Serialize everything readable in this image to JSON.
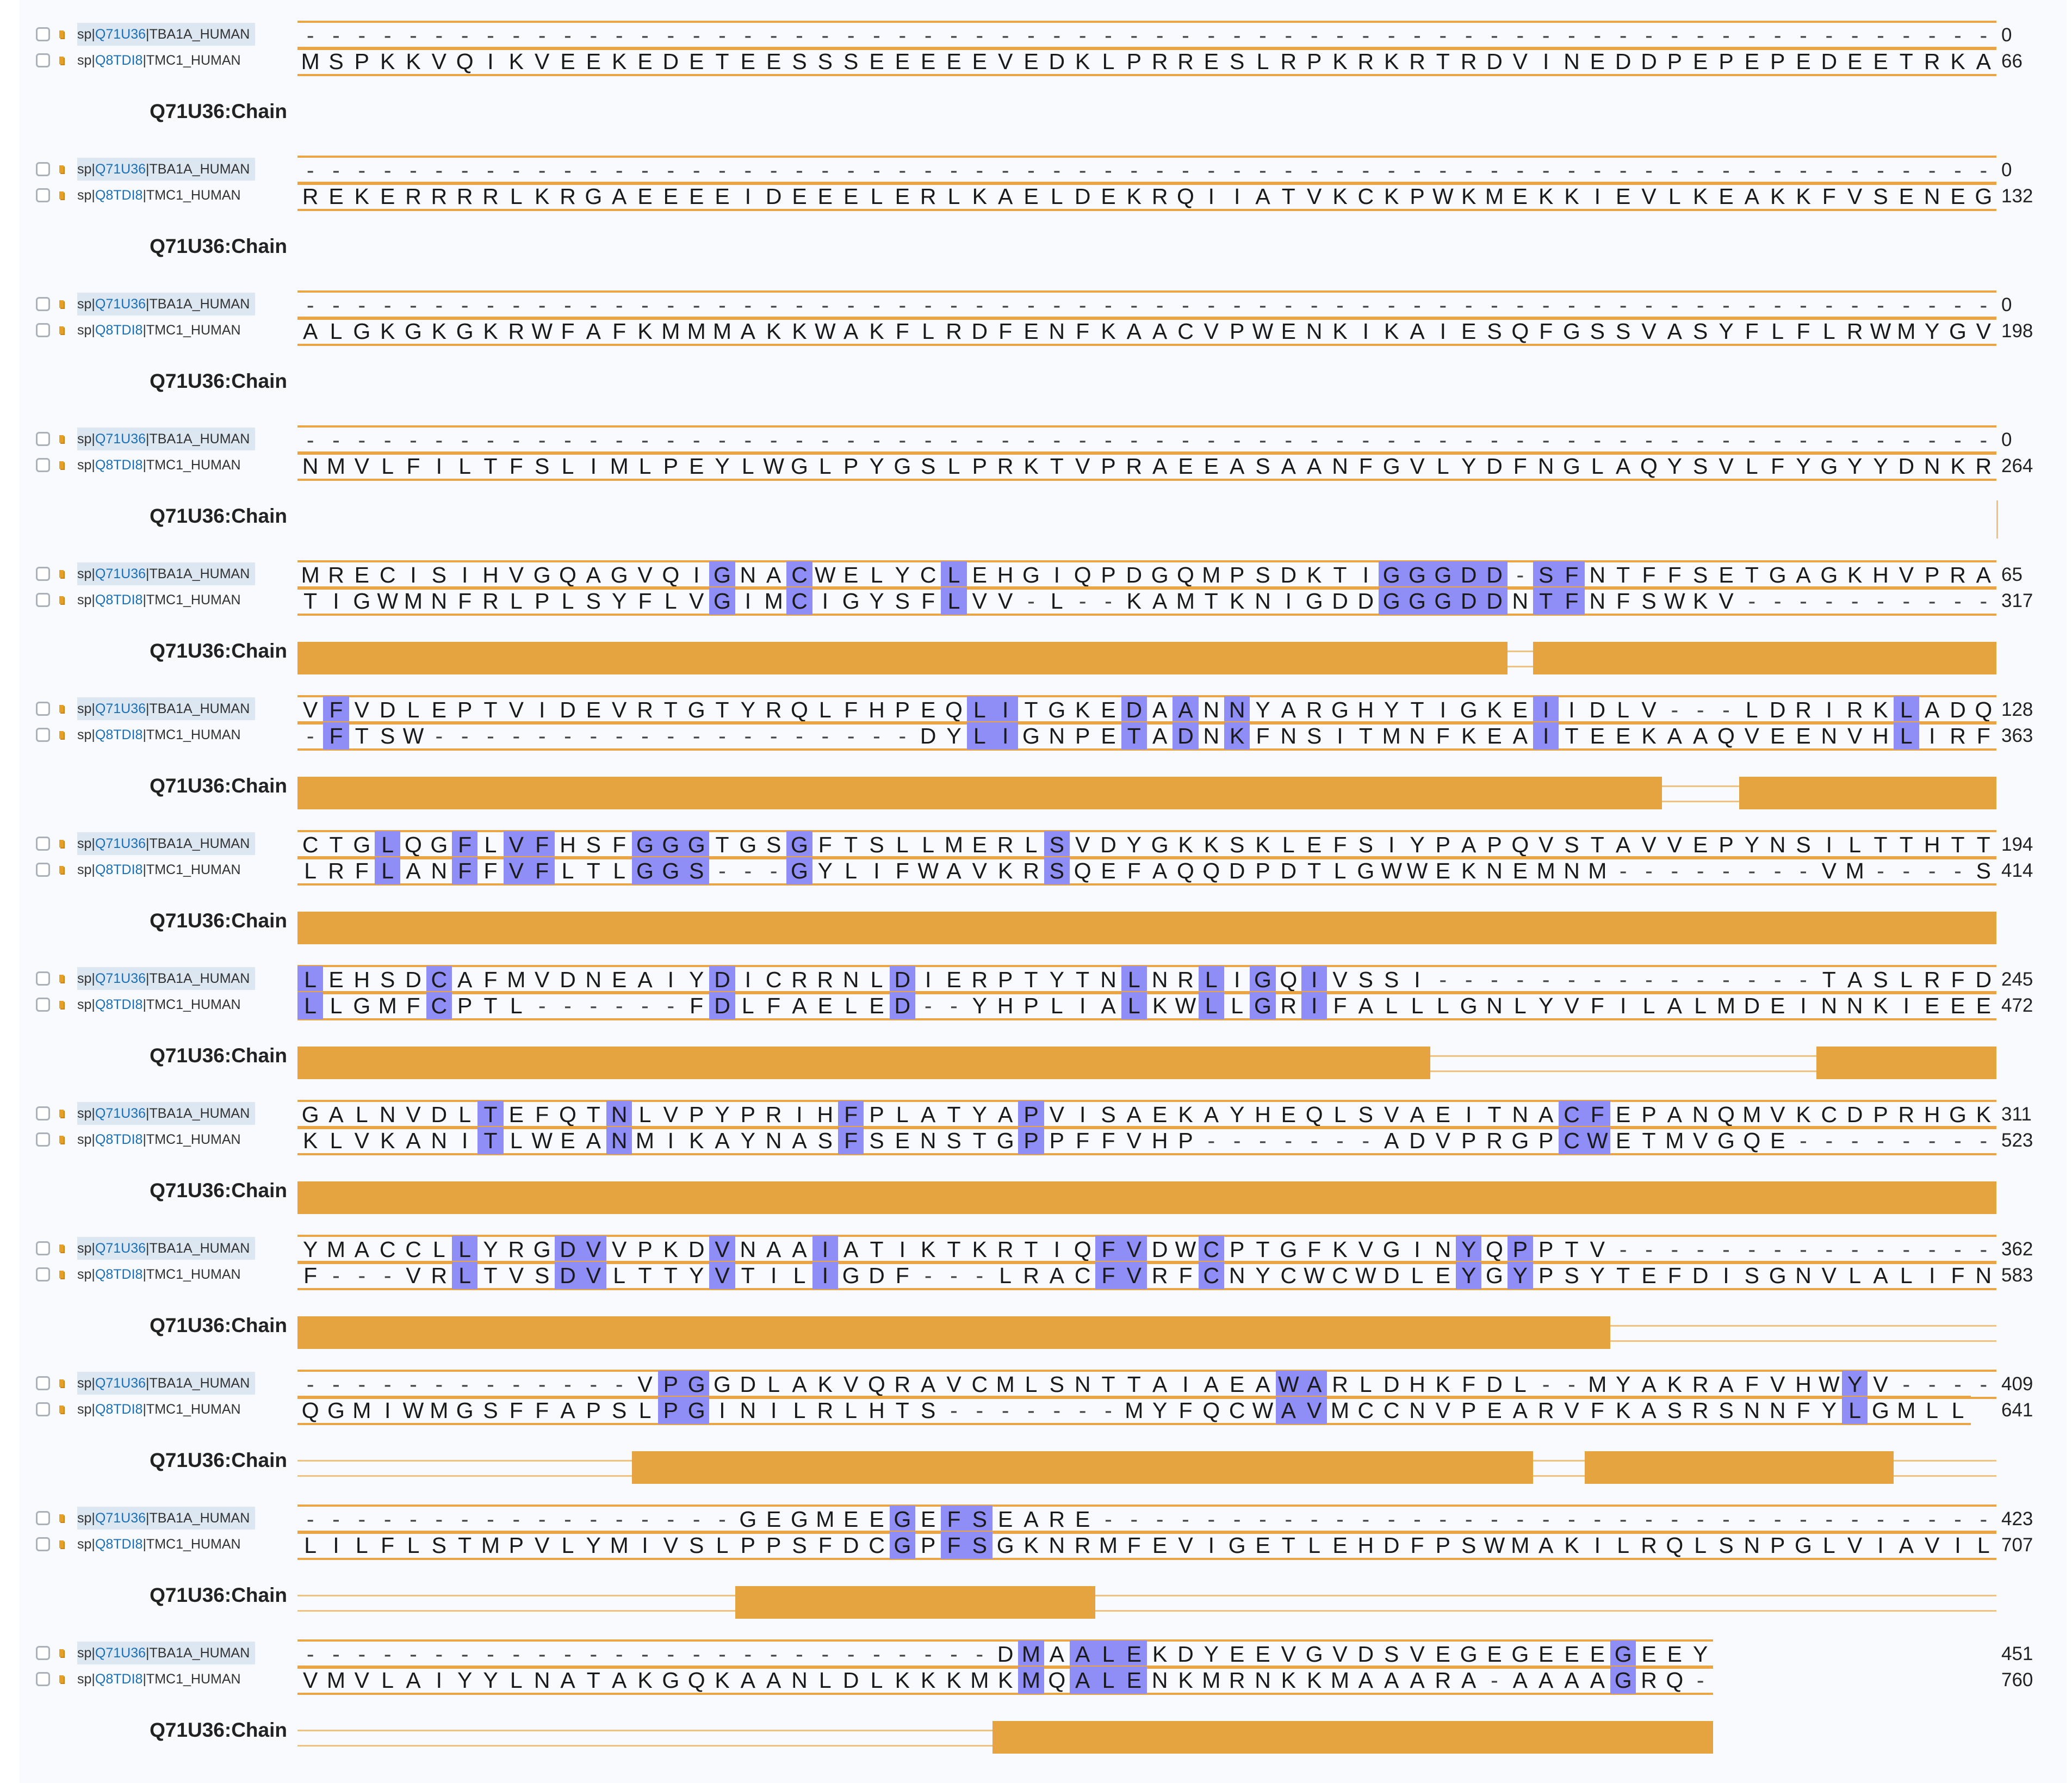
{
  "colors": {
    "highlight": "#8f8df6",
    "chain": "#e5a440",
    "outline": "#e8a445"
  },
  "sequences": [
    {
      "prefix": "sp|",
      "accession": "Q71U36",
      "entry": "|TBA1A_HUMAN"
    },
    {
      "prefix": "sp|",
      "accession": "Q8TDI8",
      "entry": "|TMC1_HUMAN"
    }
  ],
  "track_label": "Q71U36:Chain",
  "blocks": [
    {
      "a": "------------------------------------------------------------------",
      "an": "0",
      "b": "MSPKKVQIKVEEKEDETEESSSEEEEEVEDKLPRRESLRPKRKRTRDVINEDDPEPEPEDEETRKA",
      "bn": "66",
      "hl": [],
      "chain": []
    },
    {
      "a": "------------------------------------------------------------------",
      "an": "0",
      "b": "REKERRRRLKRGAEEEEIDEEELERLKAELDEKRQIIATVKCKPWKMEKKIEVLKEAKKFVSENEG",
      "bn": "132",
      "hl": [],
      "chain": []
    },
    {
      "a": "------------------------------------------------------------------",
      "an": "0",
      "b": "ALGKGKGKRWFAFKMMMAKKWAKFLRDFENFKAACVPWENKIKAIESQFGSSVASYFLFLRWMYGV",
      "bn": "198",
      "hl": [],
      "chain": []
    },
    {
      "a": "------------------------------------------------------------------",
      "an": "0",
      "b": "NMVLFILTFSLIMLPEYLWGLPYGSLPRKTVPRAEEASAANFGVLYDFNGLAQYSVLFYGYYDNKR",
      "bn": "264",
      "hl": [],
      "chain": []
    },
    {
      "a": "MRECISIHVGQAGVQIGNACWELYCLEHGIQPDGQMPSDKTIGGGDD-SFNTFFSETGAGKHVPRA",
      "an": "65",
      "b": "TIGWMNFRLPLSYFLVGIMCIGYSFLVV-L--KAMTKNIGDDGGGDDNTFNFSWKV----------",
      "bn": "317",
      "hl": [
        16,
        19,
        25,
        42,
        43,
        44,
        45,
        46,
        48,
        49
      ],
      "chain": [
        [
          0,
          47
        ],
        [
          48,
          66
        ]
      ]
    },
    {
      "a": "VFVDLEPTVIDEVRTGTYRQLFHPEQLITGKEDAANNYARGHYTIGKEIIDLV---LDRIRKLADQ",
      "an": "128",
      "b": "-FTSW-------------------DYLIGNPETADNKFNSITMNFKEAITEEKAAQVEENVHLIRF",
      "bn": "363",
      "hl": [
        1,
        26,
        27,
        32,
        34,
        36,
        48,
        62
      ],
      "chain": [
        [
          0,
          53
        ],
        [
          56,
          66
        ]
      ]
    },
    {
      "a": "CTGLQGFLVFHSFGGGTGSGFTSLLMERLSVDYGKKSKLEFSIYPAPQVSTAVVEPYNSILTTHTT",
      "an": "194",
      "b": "LRFLANFFVFLTLGGS---GYLIFWAVKRSQEFAQQDPDTLGWWEKNEMNM--------VM----S",
      "bn": "414",
      "hl": [
        3,
        6,
        8,
        9,
        13,
        14,
        15,
        19,
        29
      ],
      "chain": [
        [
          0,
          66
        ]
      ]
    },
    {
      "a": "LEHSDCAFMVDNEAIYDICRRNLDIERPTYTNLNRLIGQIVSSI---------------TASLRFD",
      "an": "245",
      "b": "LLGMFCPTL------FDLFAELED--YHPLIALKWLLGRIFALLLGNLYVFILALMDEINNKIEEE",
      "bn": "472",
      "hl": [
        0,
        5,
        16,
        23,
        32,
        35,
        37,
        39
      ],
      "chain": [
        [
          0,
          44
        ],
        [
          59,
          66
        ]
      ]
    },
    {
      "a": "GALNVDLTEFQTNLVPYPRIHFPLATYAPVISAEKAYHEQLSVAEITNACFEPANQMVKCDPRHGK",
      "an": "311",
      "b": "KLVKANITLWEANMIKAYNASFSENSTGPPFFVHP-------ADVPRGPCWETMVGQE--------",
      "bn": "523",
      "hl": [
        7,
        12,
        21,
        28,
        49,
        50
      ],
      "chain": [
        [
          0,
          66
        ]
      ]
    },
    {
      "a": "YMACCLLYRGDVVPKDVNAAIATIKTKRTIQFVDWCPTGFKVGINYQPPTV---------------",
      "an": "362",
      "b": "F---VRLTVSDVLTTYVTILIGDF---LRACFVRFCNYCWCWDLEYGYPSYTEFDISGNVLALIFN",
      "bn": "583",
      "hl": [
        6,
        10,
        11,
        16,
        20,
        31,
        32,
        35,
        45,
        47
      ],
      "chain": [
        [
          0,
          51
        ]
      ]
    },
    {
      "a": "-------------VPGGDLAKVQRAVCMLSNTTAIAEAWARLDHKFDL--MYAKRAFVHWYV----",
      "an": "409",
      "b": "QGMIWMGSFFAPSLPGINILRLHTS-------MYFQCWAVMCCNVPEARVFKASRSNNFYLGMLL",
      "bn": "641",
      "hl": [
        14,
        15,
        38,
        39,
        60
      ],
      "chain": [
        [
          13,
          48
        ],
        [
          50,
          62
        ]
      ]
    },
    {
      "a": "-----------------GEGMEEGEFSEARE-----------------------------------",
      "an": "423",
      "b": "LILFLSTMPVLYMIVSLPPSFDCGPFSGKNRMFEVIGETLEHDFPSWMAKILRQLSNPGLVIAVIL",
      "bn": "707",
      "hl": [
        23,
        25,
        26
      ],
      "chain": [
        [
          17,
          31
        ]
      ]
    },
    {
      "a": "---------------------------DMAALEKDYEEVGVDSVEGEGEEEGEEY",
      "an": "451",
      "b": "VMVLAIYYLNATAKGQKAANLDLKKKMKMQALENKMRNKKMAAARA-AAAAGRQ-",
      "bn": "760",
      "hl": [
        28,
        30,
        31,
        32,
        51
      ],
      "chain": [
        [
          27,
          55
        ]
      ]
    }
  ]
}
